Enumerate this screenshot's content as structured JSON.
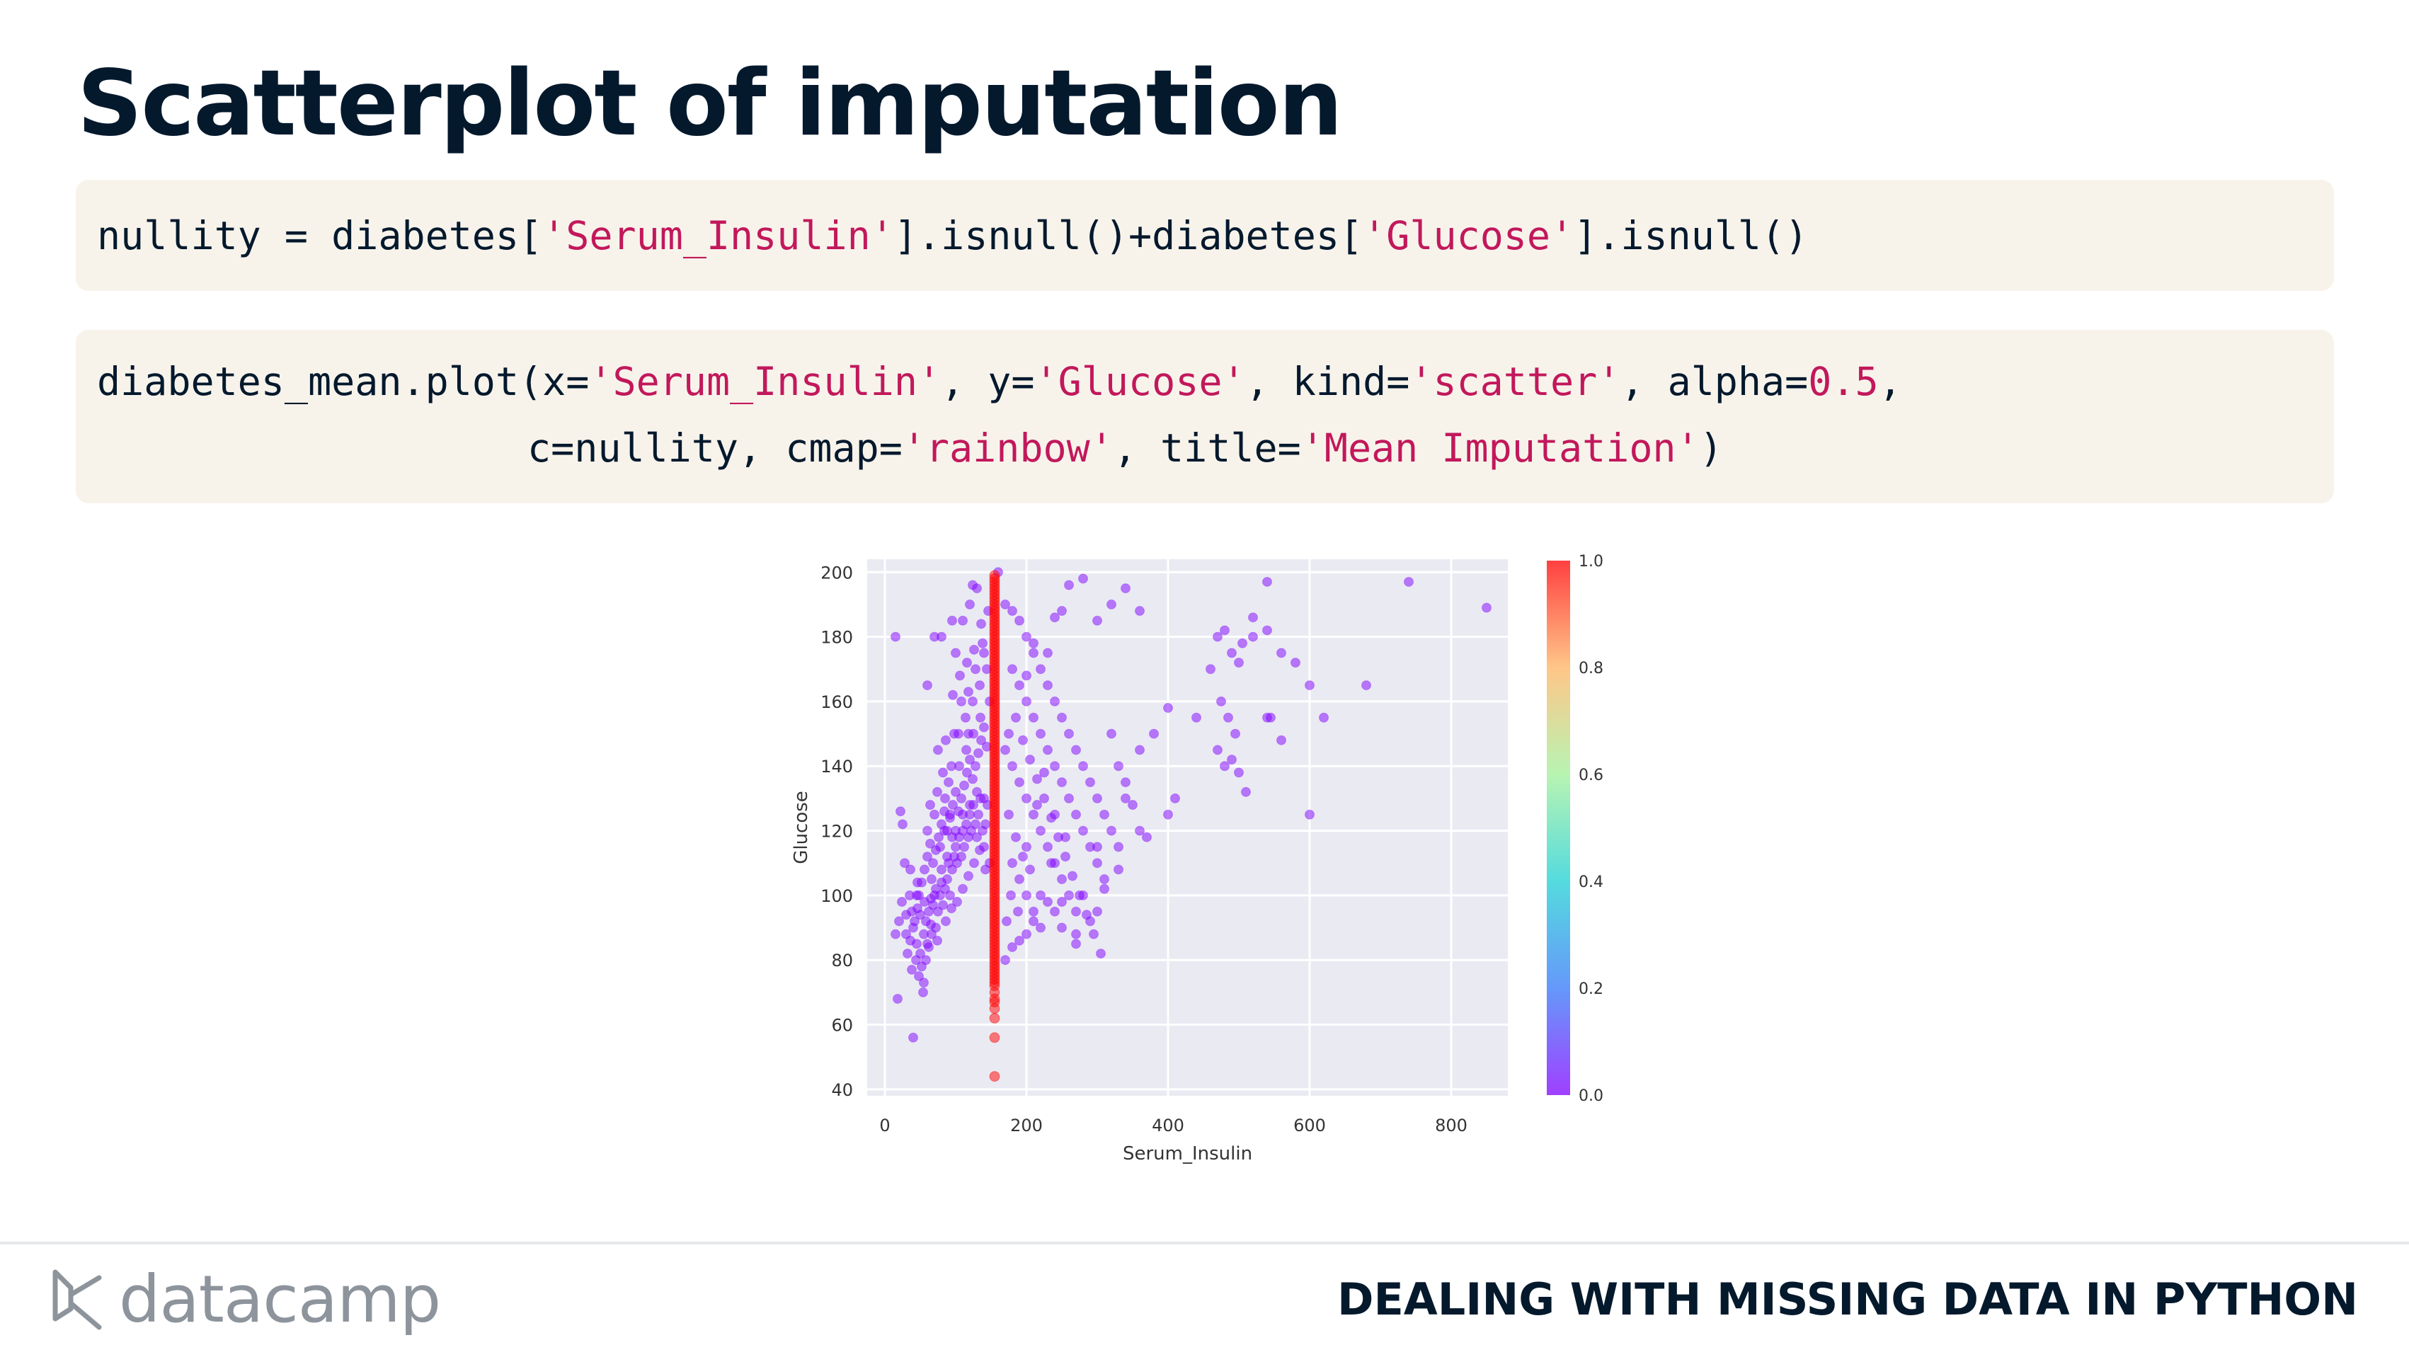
{
  "slide": {
    "title": "Scatterplot of imputation",
    "course": "DEALING WITH MISSING DATA IN PYTHON",
    "brand": "datacamp"
  },
  "code1": {
    "a": "nullity = diabetes[",
    "b": "'Serum_Insulin'",
    "c": "].isnull()+diabetes[",
    "d": "'Glucose'",
    "e": "].isnull()"
  },
  "code2": {
    "l1a": "diabetes_mean.plot(x=",
    "l1b": "'Serum_Insulin'",
    "l1c": ", y=",
    "l1d": "'Glucose'",
    "l1e": ", kind=",
    "l1f": "'scatter'",
    "l1g": ", alpha=",
    "l1h": "0.5",
    "l1i": ",",
    "l2a": "c=nullity, cmap=",
    "l2b": "'rainbow'",
    "l2c": ", title=",
    "l2d": "'Mean Imputation'",
    "l2e": ")"
  },
  "chart_data": {
    "type": "scatter",
    "xlabel": "Serum_Insulin",
    "ylabel": "Glucose",
    "xlim": [
      -25,
      880
    ],
    "ylim": [
      38,
      204
    ],
    "xticks": [
      0,
      200,
      400,
      600,
      800
    ],
    "yticks": [
      40,
      60,
      80,
      100,
      120,
      140,
      160,
      180,
      200
    ],
    "grid": true,
    "colormap": "rainbow",
    "colorbar": {
      "min": 0.0,
      "max": 1.0,
      "ticks": [
        "0.0",
        "0.2",
        "0.4",
        "0.6",
        "0.8",
        "1.0"
      ],
      "position": "right"
    },
    "background": "#eaeaf2",
    "imputed_x": 155,
    "imputed_glucose": [
      44,
      56,
      62,
      65,
      67,
      68,
      70,
      72,
      73,
      74,
      75,
      76,
      77,
      78,
      79,
      80,
      81,
      82,
      83,
      84,
      85,
      86,
      87,
      88,
      89,
      90,
      91,
      92,
      93,
      94,
      95,
      96,
      97,
      98,
      99,
      100,
      101,
      102,
      103,
      104,
      105,
      106,
      107,
      108,
      109,
      110,
      111,
      112,
      113,
      114,
      115,
      116,
      117,
      118,
      119,
      120,
      121,
      122,
      123,
      124,
      125,
      126,
      127,
      128,
      129,
      130,
      131,
      132,
      133,
      134,
      135,
      136,
      137,
      138,
      139,
      140,
      141,
      142,
      143,
      144,
      145,
      146,
      147,
      148,
      149,
      150,
      151,
      152,
      153,
      154,
      155,
      156,
      157,
      158,
      159,
      160,
      161,
      162,
      163,
      164,
      165,
      166,
      167,
      168,
      169,
      170,
      171,
      172,
      173,
      174,
      175,
      176,
      177,
      178,
      179,
      180,
      181,
      182,
      183,
      184,
      185,
      186,
      187,
      188,
      189,
      190,
      191,
      192,
      193,
      194,
      195,
      196,
      197,
      198,
      199
    ],
    "observed": [
      [
        15,
        180
      ],
      [
        22,
        126
      ],
      [
        25,
        122
      ],
      [
        40,
        56
      ],
      [
        18,
        68
      ],
      [
        15,
        88
      ],
      [
        30,
        88
      ],
      [
        45,
        100
      ],
      [
        50,
        94
      ],
      [
        60,
        85
      ],
      [
        38,
        77
      ],
      [
        55,
        73
      ],
      [
        65,
        99
      ],
      [
        72,
        102
      ],
      [
        80,
        108
      ],
      [
        88,
        112
      ],
      [
        95,
        118
      ],
      [
        100,
        120
      ],
      [
        110,
        125
      ],
      [
        120,
        128
      ],
      [
        130,
        132
      ],
      [
        140,
        130
      ],
      [
        60,
        120
      ],
      [
        70,
        125
      ],
      [
        85,
        130
      ],
      [
        90,
        135
      ],
      [
        105,
        140
      ],
      [
        115,
        145
      ],
      [
        125,
        150
      ],
      [
        135,
        155
      ],
      [
        75,
        145
      ],
      [
        82,
        138
      ],
      [
        98,
        150
      ],
      [
        108,
        160
      ],
      [
        118,
        163
      ],
      [
        128,
        170
      ],
      [
        138,
        178
      ],
      [
        60,
        165
      ],
      [
        70,
        180
      ],
      [
        80,
        180
      ],
      [
        100,
        175
      ],
      [
        95,
        185
      ],
      [
        120,
        190
      ],
      [
        130,
        195
      ],
      [
        160,
        200
      ],
      [
        170,
        190
      ],
      [
        180,
        188
      ],
      [
        190,
        185
      ],
      [
        200,
        180
      ],
      [
        210,
        175
      ],
      [
        220,
        170
      ],
      [
        230,
        165
      ],
      [
        240,
        160
      ],
      [
        250,
        155
      ],
      [
        260,
        150
      ],
      [
        270,
        145
      ],
      [
        280,
        140
      ],
      [
        290,
        135
      ],
      [
        300,
        130
      ],
      [
        310,
        125
      ],
      [
        320,
        120
      ],
      [
        330,
        115
      ],
      [
        180,
        170
      ],
      [
        190,
        165
      ],
      [
        200,
        160
      ],
      [
        210,
        155
      ],
      [
        220,
        150
      ],
      [
        230,
        145
      ],
      [
        240,
        140
      ],
      [
        250,
        135
      ],
      [
        260,
        130
      ],
      [
        270,
        125
      ],
      [
        280,
        120
      ],
      [
        290,
        115
      ],
      [
        300,
        110
      ],
      [
        310,
        105
      ],
      [
        180,
        140
      ],
      [
        190,
        135
      ],
      [
        200,
        130
      ],
      [
        210,
        125
      ],
      [
        220,
        120
      ],
      [
        230,
        115
      ],
      [
        240,
        110
      ],
      [
        250,
        105
      ],
      [
        260,
        100
      ],
      [
        270,
        95
      ],
      [
        180,
        110
      ],
      [
        190,
        105
      ],
      [
        200,
        100
      ],
      [
        210,
        95
      ],
      [
        220,
        90
      ],
      [
        235,
        110
      ],
      [
        250,
        98
      ],
      [
        270,
        88
      ],
      [
        280,
        100
      ],
      [
        300,
        115
      ],
      [
        200,
        115
      ],
      [
        215,
        128
      ],
      [
        225,
        138
      ],
      [
        240,
        125
      ],
      [
        255,
        118
      ],
      [
        175,
        125
      ],
      [
        185,
        118
      ],
      [
        195,
        112
      ],
      [
        205,
        108
      ],
      [
        178,
        100
      ],
      [
        188,
        95
      ],
      [
        172,
        92
      ],
      [
        40,
        90
      ],
      [
        45,
        85
      ],
      [
        50,
        82
      ],
      [
        52,
        78
      ],
      [
        55,
        88
      ],
      [
        58,
        92
      ],
      [
        62,
        95
      ],
      [
        65,
        91
      ],
      [
        68,
        97
      ],
      [
        70,
        100
      ],
      [
        72,
        90
      ],
      [
        75,
        95
      ],
      [
        78,
        100
      ],
      [
        80,
        104
      ],
      [
        82,
        97
      ],
      [
        85,
        102
      ],
      [
        88,
        105
      ],
      [
        90,
        110
      ],
      [
        92,
        100
      ],
      [
        95,
        108
      ],
      [
        98,
        112
      ],
      [
        100,
        115
      ],
      [
        102,
        110
      ],
      [
        105,
        118
      ],
      [
        108,
        112
      ],
      [
        110,
        120
      ],
      [
        112,
        115
      ],
      [
        115,
        122
      ],
      [
        118,
        118
      ],
      [
        120,
        125
      ],
      [
        122,
        120
      ],
      [
        125,
        128
      ],
      [
        128,
        122
      ],
      [
        130,
        118
      ],
      [
        132,
        125
      ],
      [
        135,
        130
      ],
      [
        138,
        120
      ],
      [
        140,
        115
      ],
      [
        142,
        122
      ],
      [
        145,
        128
      ],
      [
        148,
        110
      ],
      [
        35,
        100
      ],
      [
        38,
        95
      ],
      [
        42,
        92
      ],
      [
        46,
        96
      ],
      [
        48,
        100
      ],
      [
        52,
        104
      ],
      [
        56,
        108
      ],
      [
        60,
        112
      ],
      [
        64,
        116
      ],
      [
        68,
        110
      ],
      [
        72,
        114
      ],
      [
        76,
        118
      ],
      [
        80,
        122
      ],
      [
        84,
        126
      ],
      [
        88,
        120
      ],
      [
        92,
        124
      ],
      [
        96,
        128
      ],
      [
        100,
        132
      ],
      [
        104,
        126
      ],
      [
        108,
        130
      ],
      [
        112,
        134
      ],
      [
        116,
        138
      ],
      [
        120,
        142
      ],
      [
        124,
        136
      ],
      [
        128,
        140
      ],
      [
        132,
        144
      ],
      [
        136,
        148
      ],
      [
        140,
        152
      ],
      [
        144,
        146
      ],
      [
        30,
        94
      ],
      [
        32,
        82
      ],
      [
        36,
        86
      ],
      [
        44,
        80
      ],
      [
        48,
        75
      ],
      [
        54,
        70
      ],
      [
        58,
        80
      ],
      [
        62,
        84
      ],
      [
        66,
        88
      ],
      [
        74,
        86
      ],
      [
        86,
        92
      ],
      [
        94,
        96
      ],
      [
        102,
        98
      ],
      [
        110,
        102
      ],
      [
        118,
        106
      ],
      [
        126,
        110
      ],
      [
        134,
        114
      ],
      [
        142,
        108
      ],
      [
        64,
        128
      ],
      [
        74,
        132
      ],
      [
        84,
        120
      ],
      [
        94,
        140
      ],
      [
        104,
        150
      ],
      [
        114,
        155
      ],
      [
        124,
        160
      ],
      [
        134,
        165
      ],
      [
        144,
        170
      ],
      [
        96,
        162
      ],
      [
        106,
        168
      ],
      [
        116,
        172
      ],
      [
        126,
        176
      ],
      [
        136,
        184
      ],
      [
        146,
        188
      ],
      [
        86,
        148
      ],
      [
        110,
        185
      ],
      [
        124,
        196
      ],
      [
        140,
        175
      ],
      [
        148,
        160
      ],
      [
        118,
        150
      ],
      [
        92,
        125
      ],
      [
        78,
        115
      ],
      [
        66,
        105
      ],
      [
        56,
        98
      ],
      [
        46,
        104
      ],
      [
        36,
        108
      ],
      [
        28,
        110
      ],
      [
        24,
        98
      ],
      [
        20,
        92
      ],
      [
        300,
        185
      ],
      [
        320,
        190
      ],
      [
        340,
        195
      ],
      [
        360,
        188
      ],
      [
        280,
        198
      ],
      [
        260,
        196
      ],
      [
        250,
        188
      ],
      [
        240,
        186
      ],
      [
        230,
        175
      ],
      [
        210,
        178
      ],
      [
        200,
        168
      ],
      [
        320,
        150
      ],
      [
        330,
        140
      ],
      [
        340,
        135
      ],
      [
        350,
        128
      ],
      [
        360,
        120
      ],
      [
        370,
        118
      ],
      [
        400,
        125
      ],
      [
        410,
        130
      ],
      [
        440,
        155
      ],
      [
        470,
        180
      ],
      [
        480,
        182
      ],
      [
        490,
        175
      ],
      [
        500,
        172
      ],
      [
        520,
        180
      ],
      [
        540,
        182
      ],
      [
        560,
        175
      ],
      [
        580,
        172
      ],
      [
        600,
        165
      ],
      [
        620,
        155
      ],
      [
        470,
        145
      ],
      [
        480,
        140
      ],
      [
        490,
        142
      ],
      [
        500,
        138
      ],
      [
        510,
        132
      ],
      [
        475,
        160
      ],
      [
        485,
        155
      ],
      [
        495,
        150
      ],
      [
        540,
        155
      ],
      [
        545,
        155
      ],
      [
        560,
        148
      ],
      [
        600,
        125
      ],
      [
        680,
        165
      ],
      [
        740,
        197
      ],
      [
        850,
        189
      ],
      [
        540,
        197
      ],
      [
        520,
        186
      ],
      [
        505,
        178
      ],
      [
        460,
        170
      ],
      [
        400,
        158
      ],
      [
        380,
        150
      ],
      [
        360,
        145
      ],
      [
        340,
        130
      ],
      [
        330,
        108
      ],
      [
        310,
        102
      ],
      [
        300,
        95
      ],
      [
        290,
        92
      ],
      [
        270,
        85
      ],
      [
        250,
        90
      ],
      [
        240,
        95
      ],
      [
        230,
        98
      ],
      [
        220,
        100
      ],
      [
        210,
        92
      ],
      [
        200,
        88
      ],
      [
        190,
        86
      ],
      [
        180,
        84
      ],
      [
        170,
        80
      ],
      [
        170,
        145
      ],
      [
        175,
        150
      ],
      [
        185,
        155
      ],
      [
        195,
        148
      ],
      [
        205,
        142
      ],
      [
        215,
        136
      ],
      [
        225,
        130
      ],
      [
        235,
        124
      ],
      [
        245,
        118
      ],
      [
        255,
        112
      ],
      [
        265,
        106
      ],
      [
        275,
        100
      ],
      [
        285,
        94
      ],
      [
        295,
        88
      ],
      [
        305,
        82
      ]
    ]
  }
}
